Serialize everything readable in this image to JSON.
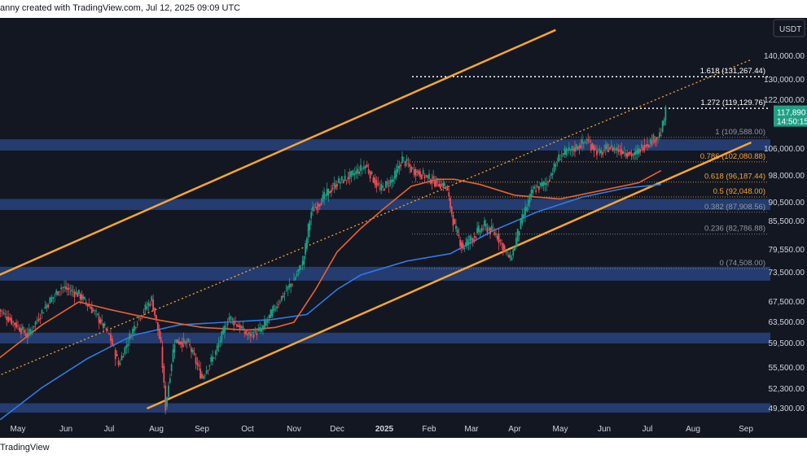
{
  "header": {
    "text": "anny created with TradingView.com, Jul 12, 2025 09:09 UTC"
  },
  "footer": {
    "brand": "TradingView"
  },
  "colors": {
    "background": "#131722",
    "channel": "#f7a532",
    "ema_fast": "#e7632f",
    "ema_slow": "#2f79ea",
    "zone": "#2b4a8a",
    "candle_up": "#1fa085",
    "candle_down": "#ef4f56",
    "last_price_tag": "#1fa085"
  },
  "chart_data": {
    "type": "candlestick",
    "currency": "USDT",
    "y_ticks": [
      "140,000.00",
      "130,000.00",
      "122,000.00",
      "106,000.00",
      "98,000.00",
      "90,500.00",
      "85,500.00",
      "79,550.00",
      "73,500.00",
      "67,500.00",
      "63,500.00",
      "59,500.00",
      "55,500.00",
      "52,300.00",
      "49,300.00"
    ],
    "y_tick_values": [
      140000,
      130000,
      122000,
      106000,
      98000,
      90500,
      85500,
      79550,
      73500,
      67500,
      63500,
      59500,
      55500,
      52300,
      49300
    ],
    "x_ticks": [
      {
        "label": "May",
        "month": 0
      },
      {
        "label": "Jun",
        "month": 1
      },
      {
        "label": "Jul",
        "month": 2
      },
      {
        "label": "Aug",
        "month": 3
      },
      {
        "label": "Sep",
        "month": 4
      },
      {
        "label": "Oct",
        "month": 5
      },
      {
        "label": "Nov",
        "month": 6
      },
      {
        "label": "Dec",
        "month": 7
      },
      {
        "label": "2025",
        "month": 8
      },
      {
        "label": "Feb",
        "month": 9
      },
      {
        "label": "Mar",
        "month": 10
      },
      {
        "label": "Apr",
        "month": 11
      },
      {
        "label": "May",
        "month": 12
      },
      {
        "label": "Jun",
        "month": 13
      },
      {
        "label": "Jul",
        "month": 14
      },
      {
        "label": "Aug",
        "month": 15
      },
      {
        "label": "Sep",
        "month": 16
      }
    ],
    "last_price": {
      "price": "117,890",
      "countdown": "14:50:15",
      "value": 117890
    },
    "fibonacci": [
      {
        "ratio": "1.618",
        "label": "1.618 (131,267.44)",
        "price": 131267.44,
        "style": "dotted"
      },
      {
        "ratio": "1.272",
        "label": "1.272 (119,129.76)",
        "price": 119129.76,
        "style": "dotted"
      },
      {
        "ratio": "1",
        "label": "1 (109,588.00)",
        "price": 109588,
        "style": "solid"
      },
      {
        "ratio": "0.786",
        "label": "0.786 (102,080.88)",
        "price": 102080.88,
        "style": "solid"
      },
      {
        "ratio": "0.618",
        "label": "0.618 (96,187.44)",
        "price": 96187.44,
        "style": "solid"
      },
      {
        "ratio": "0.5",
        "label": "0.5 (92,048.00)",
        "price": 92048,
        "style": "solid"
      },
      {
        "ratio": "0.382",
        "label": "0.382 (87,908.56)",
        "price": 87908.56,
        "style": "solid"
      },
      {
        "ratio": "0.236",
        "label": "0.236 (82,786.88)",
        "price": 82786.88,
        "style": "solid"
      },
      {
        "ratio": "0",
        "label": "0 (74,508.00)",
        "price": 74508,
        "style": "solid"
      }
    ],
    "zones": [
      {
        "low": 105500,
        "high": 109000
      },
      {
        "low": 88500,
        "high": 91500
      },
      {
        "low": 71800,
        "high": 75000
      },
      {
        "low": 59500,
        "high": 61500
      },
      {
        "low": 48700,
        "high": 50100
      }
    ],
    "price_path": [
      {
        "month": -0.4,
        "price": 66000
      },
      {
        "month": 0.2,
        "price": 61000
      },
      {
        "month": 0.6,
        "price": 67000
      },
      {
        "month": 0.9,
        "price": 70500
      },
      {
        "month": 1.3,
        "price": 69000
      },
      {
        "month": 1.7,
        "price": 65000
      },
      {
        "month": 2.0,
        "price": 61000
      },
      {
        "month": 2.2,
        "price": 56000
      },
      {
        "month": 2.6,
        "price": 64000
      },
      {
        "month": 2.9,
        "price": 68000
      },
      {
        "month": 3.1,
        "price": 59000
      },
      {
        "month": 3.2,
        "price": 49500
      },
      {
        "month": 3.4,
        "price": 60000
      },
      {
        "month": 3.7,
        "price": 59500
      },
      {
        "month": 4.0,
        "price": 54000
      },
      {
        "month": 4.3,
        "price": 58000
      },
      {
        "month": 4.6,
        "price": 64500
      },
      {
        "month": 5.0,
        "price": 61000
      },
      {
        "month": 5.3,
        "price": 62000
      },
      {
        "month": 5.7,
        "price": 68000
      },
      {
        "month": 6.0,
        "price": 72000
      },
      {
        "month": 6.2,
        "price": 76000
      },
      {
        "month": 6.4,
        "price": 88000
      },
      {
        "month": 6.7,
        "price": 92000
      },
      {
        "month": 7.0,
        "price": 96000
      },
      {
        "month": 7.3,
        "price": 98000
      },
      {
        "month": 7.6,
        "price": 101000
      },
      {
        "month": 7.9,
        "price": 94000
      },
      {
        "month": 8.2,
        "price": 97000
      },
      {
        "month": 8.4,
        "price": 103000
      },
      {
        "month": 8.6,
        "price": 100000
      },
      {
        "month": 8.9,
        "price": 98000
      },
      {
        "month": 9.1,
        "price": 96500
      },
      {
        "month": 9.4,
        "price": 95000
      },
      {
        "month": 9.6,
        "price": 84000
      },
      {
        "month": 9.8,
        "price": 80000
      },
      {
        "month": 10.0,
        "price": 82000
      },
      {
        "month": 10.3,
        "price": 84500
      },
      {
        "month": 10.6,
        "price": 82500
      },
      {
        "month": 10.9,
        "price": 77000
      },
      {
        "month": 11.1,
        "price": 84000
      },
      {
        "month": 11.4,
        "price": 94000
      },
      {
        "month": 11.7,
        "price": 96000
      },
      {
        "month": 12.0,
        "price": 104000
      },
      {
        "month": 12.3,
        "price": 106000
      },
      {
        "month": 12.6,
        "price": 108500
      },
      {
        "month": 12.9,
        "price": 104500
      },
      {
        "month": 13.1,
        "price": 106500
      },
      {
        "month": 13.4,
        "price": 105500
      },
      {
        "month": 13.7,
        "price": 104000
      },
      {
        "month": 13.9,
        "price": 107000
      },
      {
        "month": 14.1,
        "price": 108500
      },
      {
        "month": 14.3,
        "price": 111000
      },
      {
        "month": 14.4,
        "price": 117890
      }
    ],
    "ema_slow": [
      {
        "month": -0.4,
        "price": 47500
      },
      {
        "month": 0.5,
        "price": 52500
      },
      {
        "month": 1.5,
        "price": 57000
      },
      {
        "month": 2.5,
        "price": 61000
      },
      {
        "month": 3.5,
        "price": 63000
      },
      {
        "month": 4.5,
        "price": 63500
      },
      {
        "month": 5.5,
        "price": 64000
      },
      {
        "month": 6.3,
        "price": 65000
      },
      {
        "month": 7.0,
        "price": 70000
      },
      {
        "month": 7.5,
        "price": 73000
      },
      {
        "month": 8.5,
        "price": 76500
      },
      {
        "month": 9.5,
        "price": 78500
      },
      {
        "month": 10.5,
        "price": 83500
      },
      {
        "month": 11.5,
        "price": 88000
      },
      {
        "month": 12.5,
        "price": 92000
      },
      {
        "month": 13.5,
        "price": 94500
      },
      {
        "month": 14.3,
        "price": 95500
      }
    ],
    "ema_fast": [
      {
        "month": -0.4,
        "price": 57000
      },
      {
        "month": 0.5,
        "price": 63000
      },
      {
        "month": 1.3,
        "price": 67500
      },
      {
        "month": 2.0,
        "price": 66000
      },
      {
        "month": 3.0,
        "price": 64000
      },
      {
        "month": 4.0,
        "price": 62500
      },
      {
        "month": 5.0,
        "price": 62000
      },
      {
        "month": 5.6,
        "price": 62500
      },
      {
        "month": 6.0,
        "price": 63500
      },
      {
        "month": 6.5,
        "price": 70000
      },
      {
        "month": 7.0,
        "price": 79000
      },
      {
        "month": 7.5,
        "price": 84000
      },
      {
        "month": 8.0,
        "price": 89000
      },
      {
        "month": 8.6,
        "price": 95000
      },
      {
        "month": 9.2,
        "price": 97000
      },
      {
        "month": 9.6,
        "price": 97000
      },
      {
        "month": 10.2,
        "price": 95500
      },
      {
        "month": 11.0,
        "price": 92500
      },
      {
        "month": 12.0,
        "price": 91500
      },
      {
        "month": 13.0,
        "price": 94000
      },
      {
        "month": 13.8,
        "price": 96000
      },
      {
        "month": 14.3,
        "price": 99500
      }
    ],
    "channel_upper": [
      {
        "month": -0.5,
        "price": 72500
      },
      {
        "month": 11.9,
        "price": 152000
      }
    ],
    "channel_lower": [
      {
        "month": 2.8,
        "price": 49300
      },
      {
        "month": 16.1,
        "price": 108000
      }
    ],
    "channel_mid_dotted": [
      {
        "month": -0.5,
        "price": 54000
      },
      {
        "month": 16.1,
        "price": 138500
      }
    ]
  }
}
